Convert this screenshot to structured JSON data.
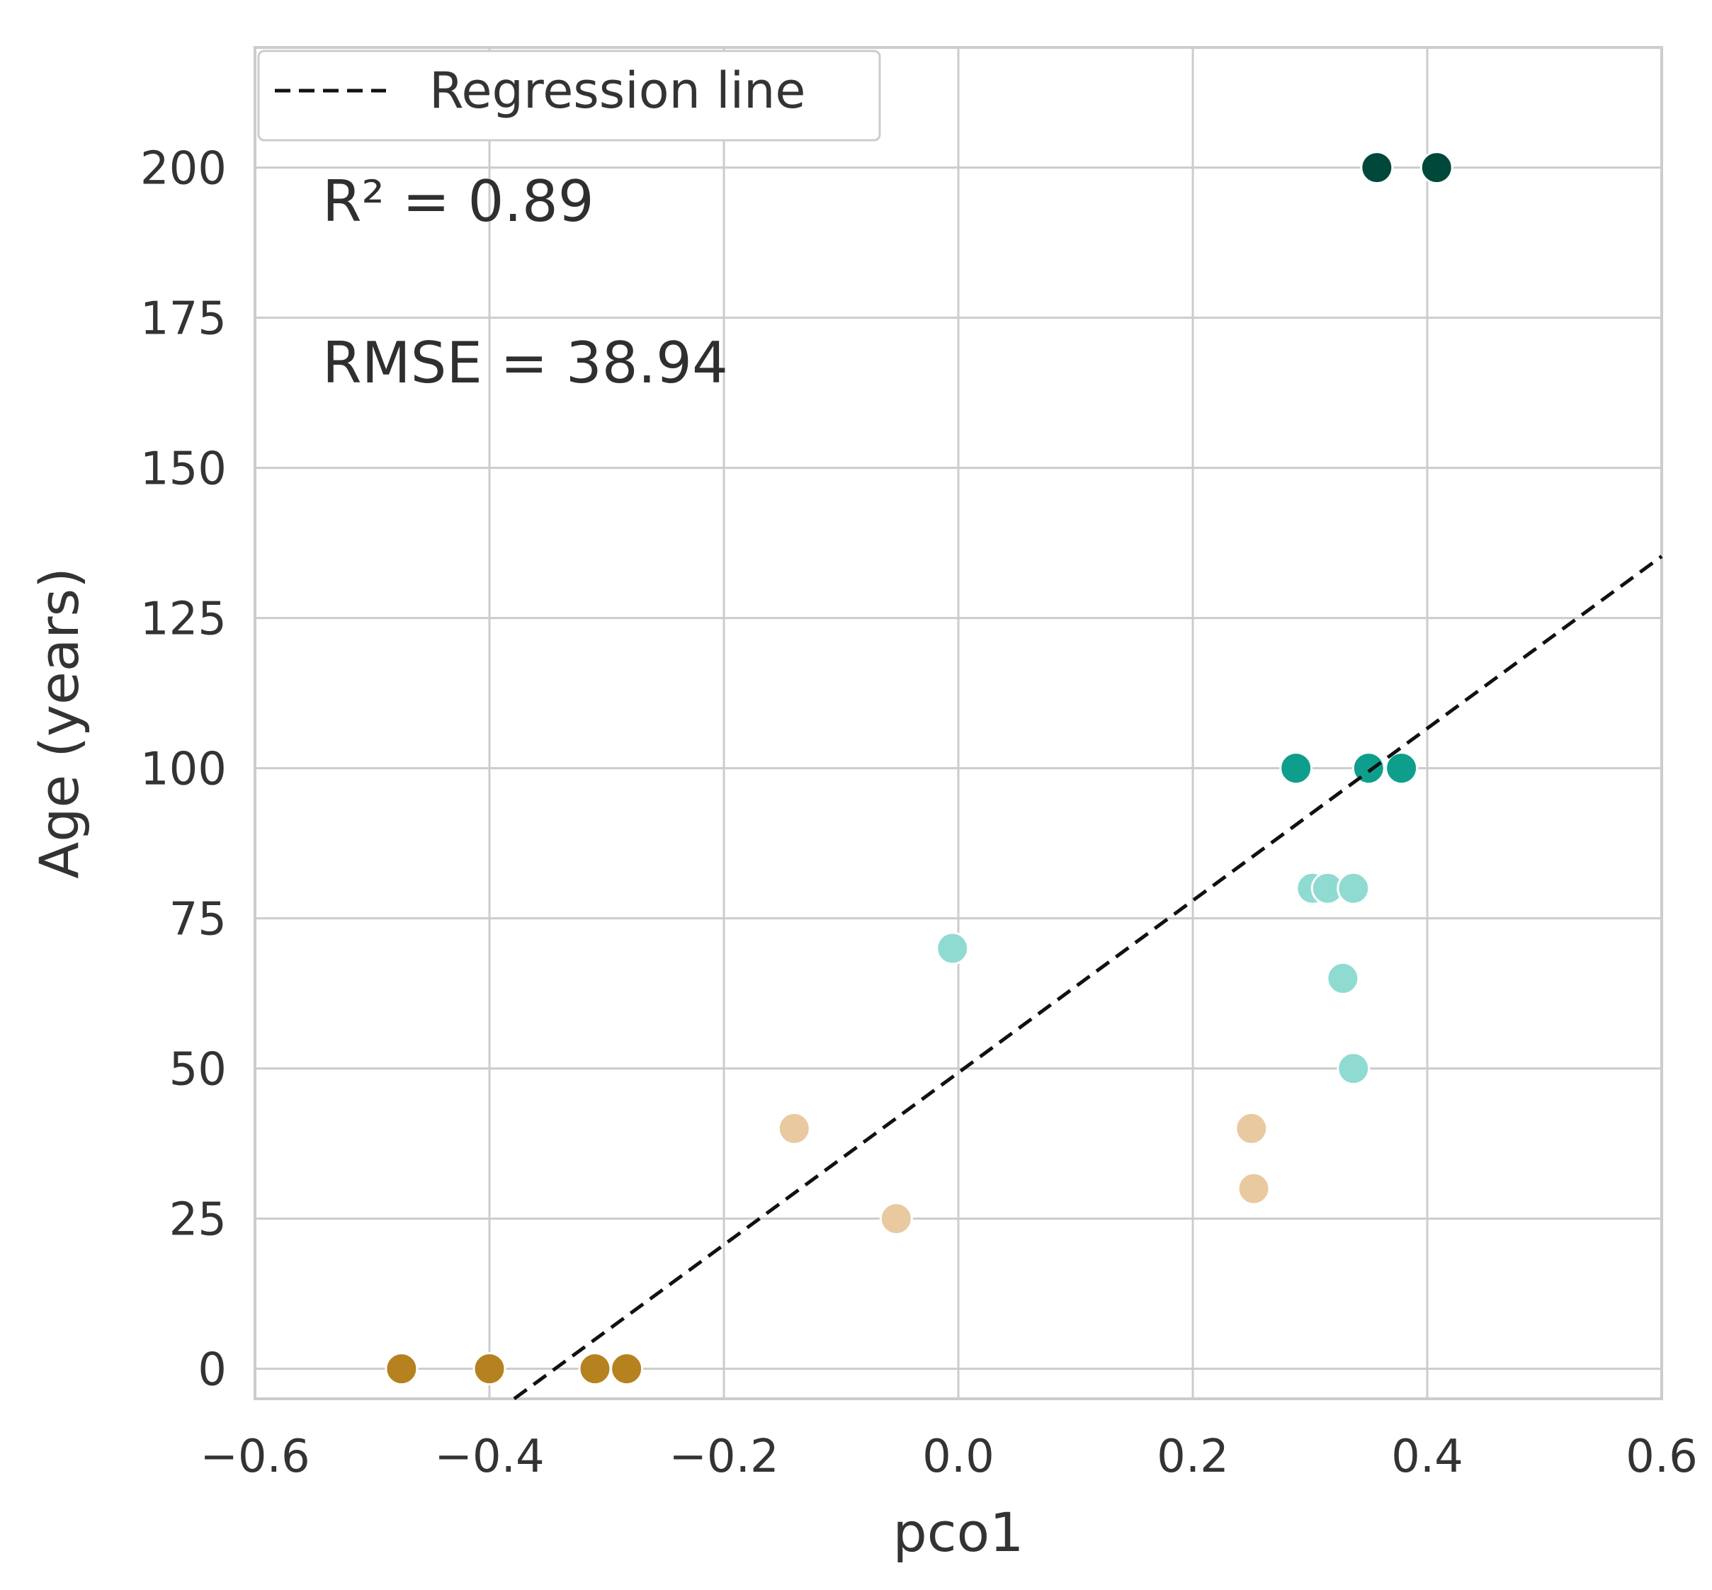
{
  "chart_data": {
    "type": "scatter",
    "title": "",
    "xlabel": "pco1",
    "ylabel": "Age (years)",
    "xlim": [
      -0.6,
      0.6
    ],
    "ylim": [
      -5,
      220
    ],
    "grid": true,
    "x_ticks": [
      -0.6,
      -0.4,
      -0.2,
      0.0,
      0.2,
      0.4,
      0.6
    ],
    "x_tick_labels": [
      "−0.6",
      "−0.4",
      "−0.2",
      "0.0",
      "0.2",
      "0.4",
      "0.6"
    ],
    "y_ticks": [
      0,
      25,
      50,
      75,
      100,
      125,
      150,
      175,
      200
    ],
    "y_tick_labels": [
      "0",
      "25",
      "50",
      "75",
      "100",
      "125",
      "150",
      "175",
      "200"
    ],
    "legend": {
      "placement": "top-left",
      "entries": [
        "Regression line"
      ]
    },
    "annotations": [
      "R² = 0.89",
      "RMSE = 38.94"
    ],
    "regression_line": {
      "slope": 143.3,
      "intercept": 49.3,
      "style": "dashed",
      "color": "#111111"
    },
    "points": [
      {
        "x": -0.475,
        "y": 0,
        "color": "#b5821f"
      },
      {
        "x": -0.4,
        "y": 0,
        "color": "#b5821f"
      },
      {
        "x": -0.31,
        "y": 0,
        "color": "#b5821f"
      },
      {
        "x": -0.283,
        "y": 0,
        "color": "#b5821f"
      },
      {
        "x": -0.14,
        "y": 40,
        "color": "#e8c9a0"
      },
      {
        "x": -0.053,
        "y": 25,
        "color": "#e8c9a0"
      },
      {
        "x": 0.25,
        "y": 40,
        "color": "#e8c9a0"
      },
      {
        "x": 0.252,
        "y": 30,
        "color": "#e8c9a0"
      },
      {
        "x": -0.005,
        "y": 70,
        "color": "#8fdbd1"
      },
      {
        "x": 0.302,
        "y": 80,
        "color": "#8fdbd1"
      },
      {
        "x": 0.315,
        "y": 80,
        "color": "#8fdbd1"
      },
      {
        "x": 0.337,
        "y": 80,
        "color": "#8fdbd1"
      },
      {
        "x": 0.328,
        "y": 65,
        "color": "#8fdbd1"
      },
      {
        "x": 0.337,
        "y": 50,
        "color": "#8fdbd1"
      },
      {
        "x": 0.288,
        "y": 100,
        "color": "#0e9f8c"
      },
      {
        "x": 0.35,
        "y": 100,
        "color": "#0e9f8c"
      },
      {
        "x": 0.378,
        "y": 100,
        "color": "#0e9f8c"
      },
      {
        "x": 0.357,
        "y": 200,
        "color": "#00483a"
      },
      {
        "x": 0.408,
        "y": 200,
        "color": "#00483a"
      }
    ]
  }
}
